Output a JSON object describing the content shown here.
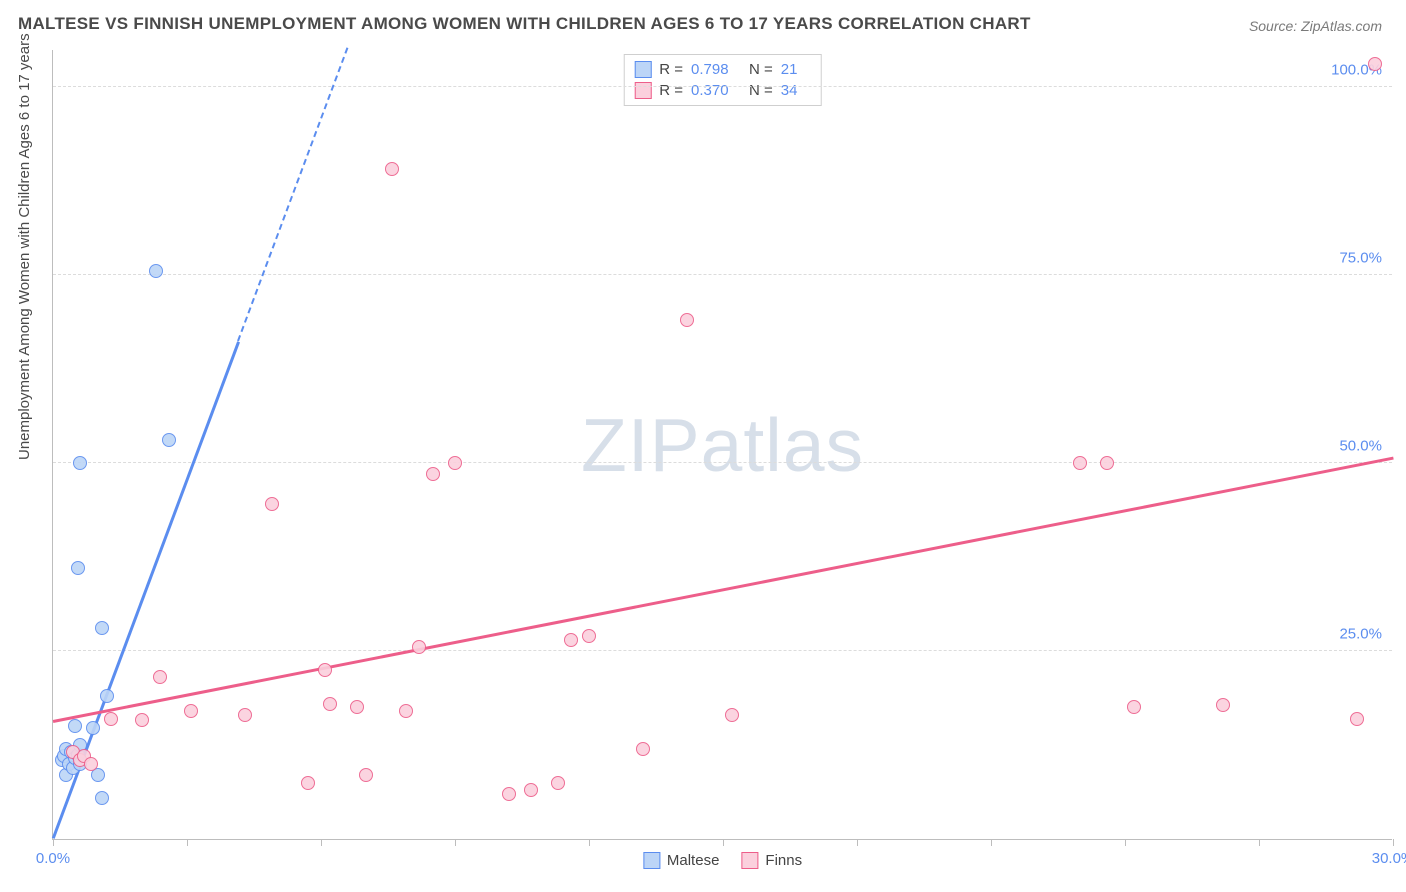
{
  "title": "MALTESE VS FINNISH UNEMPLOYMENT AMONG WOMEN WITH CHILDREN AGES 6 TO 17 YEARS CORRELATION CHART",
  "source": "Source: ZipAtlas.com",
  "ylabel": "Unemployment Among Women with Children Ages 6 to 17 years",
  "watermark": "ZIPatlas",
  "chart": {
    "type": "scatter",
    "background_color": "#ffffff",
    "grid_color": "#dcdcdc",
    "axis_color": "#bdbdbd",
    "xlim": [
      0,
      30
    ],
    "ylim": [
      0,
      105
    ],
    "xticks": [
      0,
      3,
      6,
      9,
      12,
      15,
      18,
      21,
      24,
      27,
      30
    ],
    "xtick_labels": {
      "0": "0.0%",
      "30": "30.0%"
    },
    "yticks": [
      25,
      50,
      75,
      100
    ],
    "ytick_labels": {
      "25": "25.0%",
      "50": "50.0%",
      "75": "75.0%",
      "100": "100.0%"
    },
    "tick_label_color": "#5b8def",
    "tick_label_fontsize": 15,
    "marker_radius": 7,
    "marker_stroke_width": 1.5,
    "marker_fill_opacity": 0.25,
    "series": [
      {
        "name": "Maltese",
        "color_stroke": "#5b8def",
        "color_fill": "#bcd5f7",
        "R": "0.798",
        "N": "21",
        "regression": {
          "x1": 0,
          "y1": 0,
          "x2": 4.15,
          "y2": 66,
          "dash_to_y": 105
        },
        "points": [
          [
            0.2,
            10.5
          ],
          [
            0.25,
            11
          ],
          [
            0.3,
            8.5
          ],
          [
            0.3,
            12
          ],
          [
            0.35,
            10
          ],
          [
            0.4,
            11.5
          ],
          [
            0.45,
            9.5
          ],
          [
            0.5,
            10.8
          ],
          [
            0.5,
            15
          ],
          [
            0.55,
            11.2
          ],
          [
            0.6,
            10
          ],
          [
            0.6,
            12.5
          ],
          [
            0.9,
            14.8
          ],
          [
            1.0,
            8.5
          ],
          [
            1.2,
            19
          ],
          [
            1.1,
            5.5
          ],
          [
            1.1,
            28
          ],
          [
            0.55,
            36
          ],
          [
            0.6,
            50
          ],
          [
            2.6,
            53
          ],
          [
            2.3,
            75.5
          ]
        ]
      },
      {
        "name": "Finns",
        "color_stroke": "#ed5e8a",
        "color_fill": "#fbd0dd",
        "R": "0.370",
        "N": "34",
        "regression": {
          "x1": 0,
          "y1": 15.5,
          "x2": 30,
          "y2": 50.5
        },
        "points": [
          [
            0.45,
            11.5
          ],
          [
            0.6,
            10.5
          ],
          [
            0.7,
            11
          ],
          [
            0.85,
            10
          ],
          [
            1.3,
            16
          ],
          [
            2.0,
            15.8
          ],
          [
            2.4,
            21.5
          ],
          [
            3.1,
            17
          ],
          [
            4.3,
            16.5
          ],
          [
            4.9,
            44.5
          ],
          [
            5.7,
            7.5
          ],
          [
            6.1,
            22.5
          ],
          [
            6.2,
            18
          ],
          [
            6.8,
            17.5
          ],
          [
            7.0,
            8.5
          ],
          [
            7.6,
            89
          ],
          [
            7.9,
            17
          ],
          [
            8.2,
            25.5
          ],
          [
            8.5,
            48.5
          ],
          [
            9.0,
            50
          ],
          [
            10.2,
            6
          ],
          [
            10.7,
            6.5
          ],
          [
            12.0,
            27
          ],
          [
            11.3,
            7.5
          ],
          [
            11.6,
            26.5
          ],
          [
            13.2,
            12
          ],
          [
            14.2,
            69
          ],
          [
            15.2,
            16.5
          ],
          [
            23.0,
            50
          ],
          [
            23.6,
            50
          ],
          [
            24.2,
            17.5
          ],
          [
            26.2,
            17.8
          ],
          [
            29.2,
            16
          ],
          [
            29.6,
            103
          ]
        ]
      }
    ],
    "legend_bottom": [
      "Maltese",
      "Finns"
    ]
  }
}
